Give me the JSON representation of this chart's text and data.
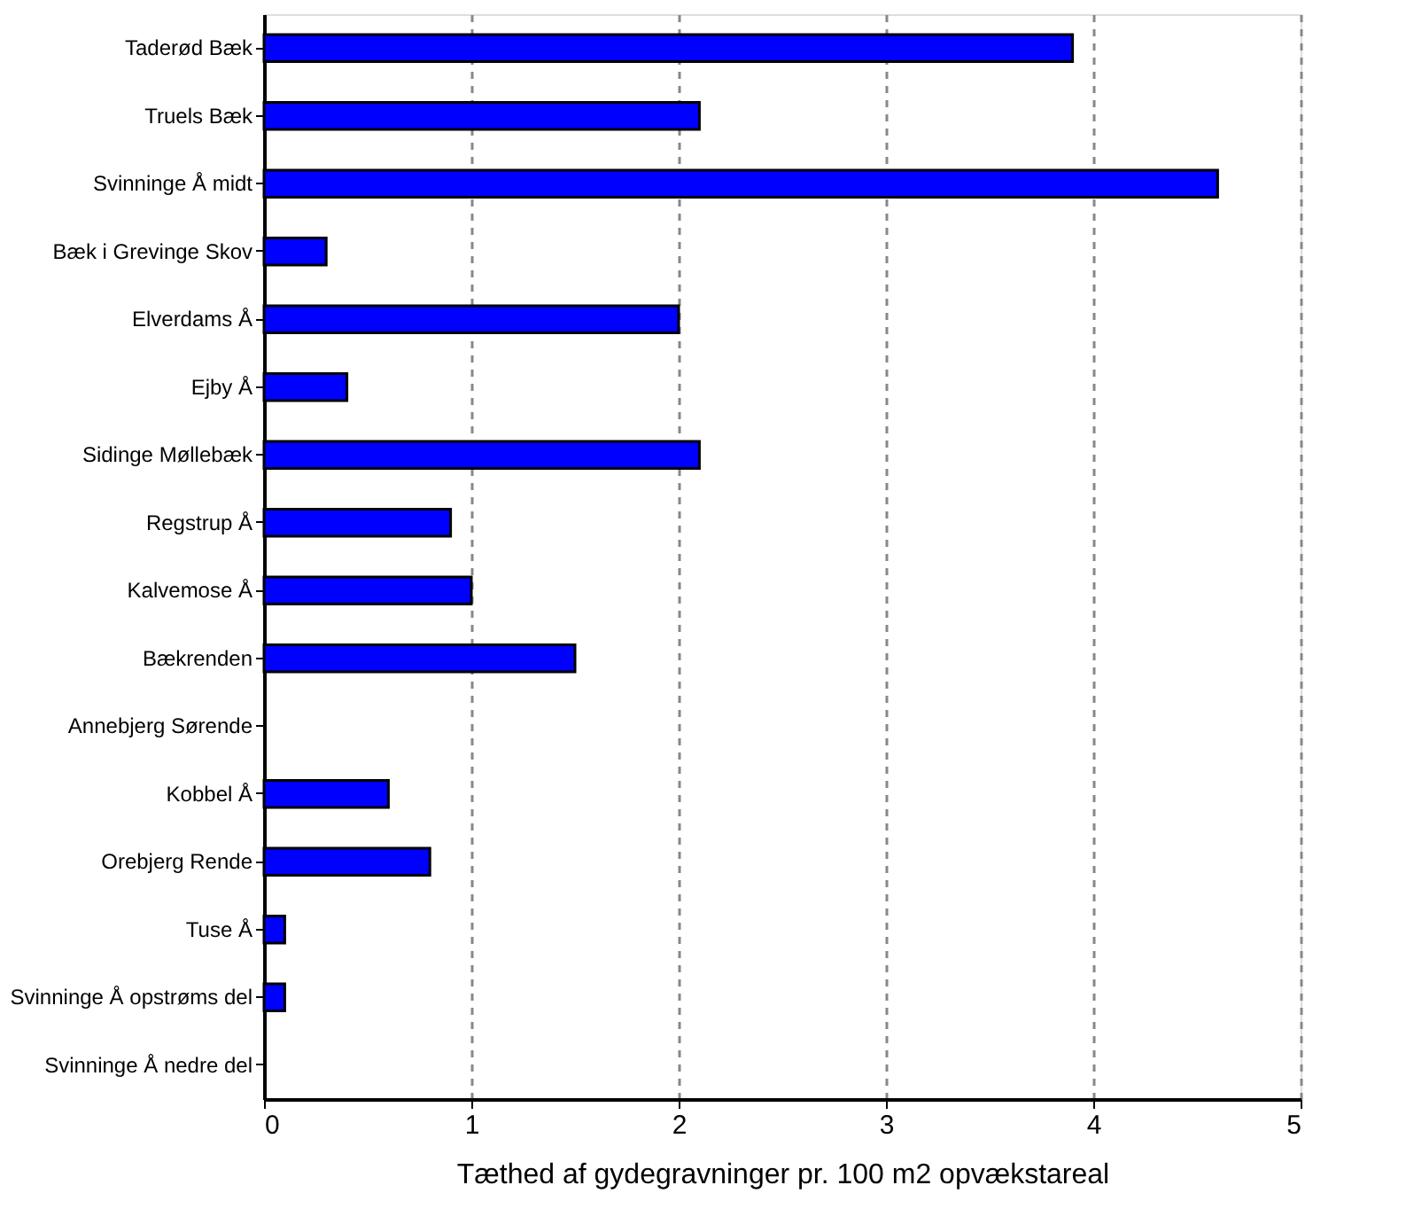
{
  "chart_data": {
    "type": "bar",
    "orientation": "horizontal",
    "xlabel": "Tæthed af gydegravninger pr. 100 m2 opvækstareal",
    "categories": [
      "Taderød Bæk",
      "Truels Bæk",
      "Svinninge Å midt",
      "Bæk i Grevinge Skov",
      "Elverdams Å",
      "Ejby Å",
      "Sidinge Møllebæk",
      "Regstrup Å",
      "Kalvemose Å",
      "Bækrenden",
      "Annebjerg Sørende",
      "Kobbel Å",
      "Orebjerg Rende",
      "Tuse Å",
      "Svinninge Å opstrøms del",
      "Svinninge Å nedre del"
    ],
    "values": [
      3.9,
      2.1,
      4.6,
      0.3,
      2.0,
      0.4,
      2.1,
      0.9,
      1.0,
      1.5,
      0,
      0.6,
      0.8,
      0.1,
      0.1,
      0
    ],
    "color": "#0000ff",
    "xlim": [
      0,
      5
    ],
    "xticks": [
      0,
      1,
      2,
      3,
      4,
      5
    ],
    "grid": "x",
    "line_style": "dashed"
  }
}
